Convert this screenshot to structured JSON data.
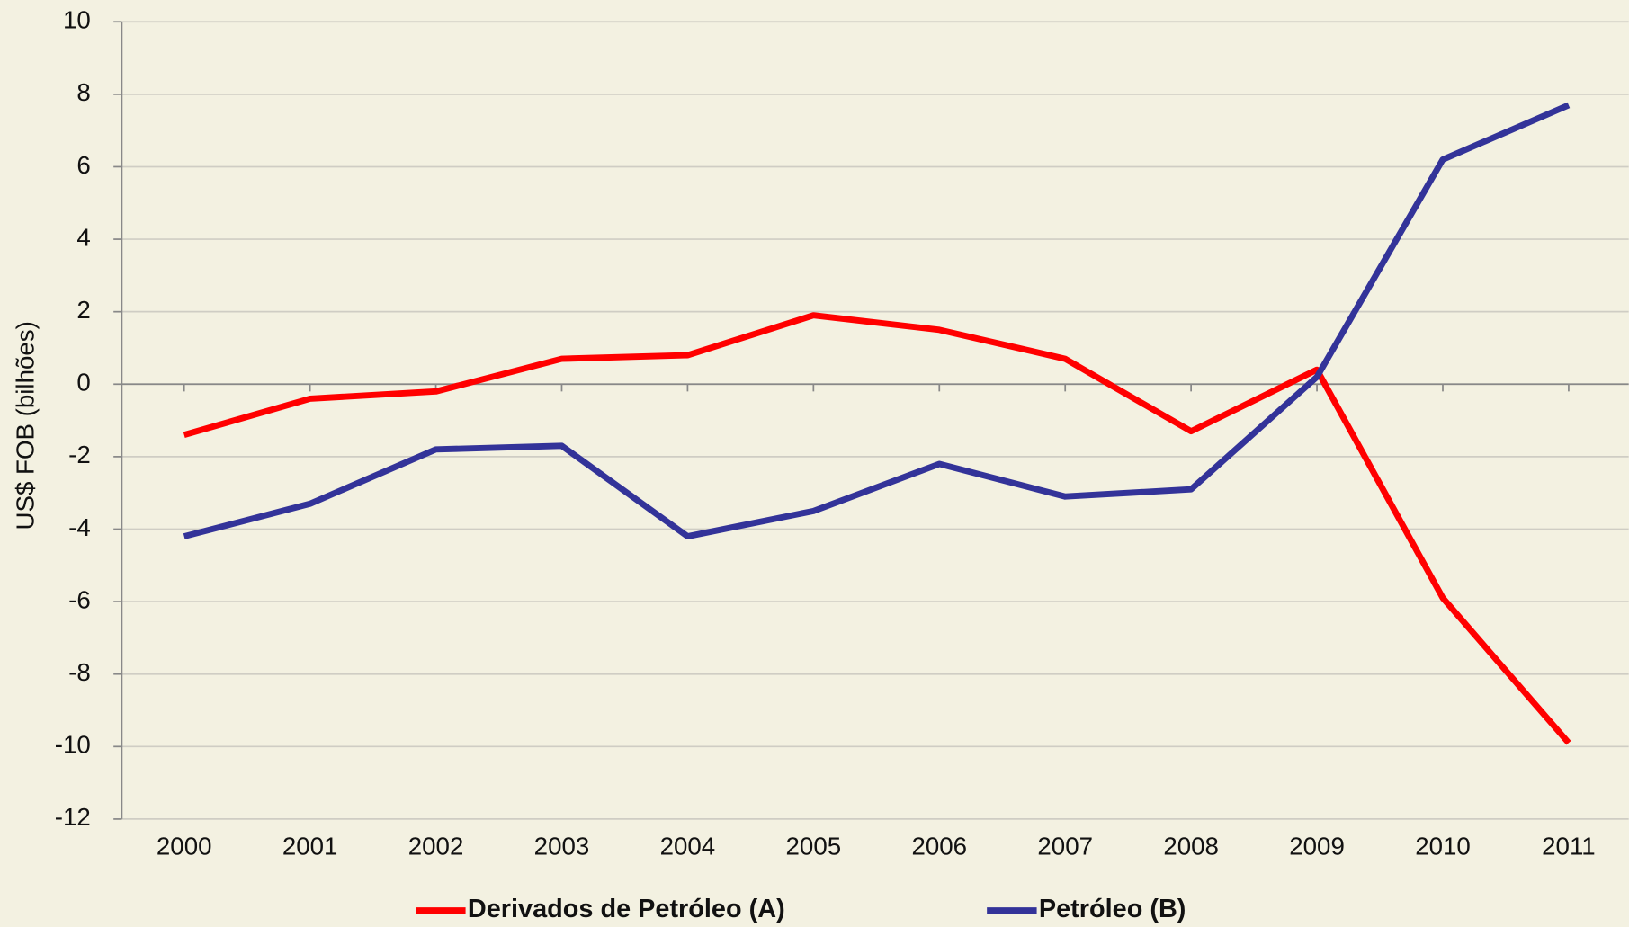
{
  "chart_data": {
    "type": "line",
    "y_label": "US$ FOB (bilhões)",
    "categories": [
      "2000",
      "2001",
      "2002",
      "2003",
      "2004",
      "2005",
      "2006",
      "2007",
      "2008",
      "2009",
      "2010",
      "2011"
    ],
    "series": [
      {
        "name": "Derivados de Petróleo (A)",
        "color": "#ff0000",
        "values": [
          -1.4,
          -0.4,
          -0.2,
          0.7,
          0.8,
          1.9,
          1.5,
          0.7,
          -1.3,
          0.4,
          -5.9,
          -9.9
        ]
      },
      {
        "name": "Petróleo (B)",
        "color": "#333399",
        "values": [
          -4.2,
          -3.3,
          -1.8,
          -1.7,
          -4.2,
          -3.5,
          -2.2,
          -3.1,
          -2.9,
          0.2,
          6.2,
          7.7
        ]
      }
    ],
    "ylim": [
      -12,
      10
    ],
    "yticks": [
      -12,
      -10,
      -8,
      -6,
      -4,
      -2,
      0,
      2,
      4,
      6,
      8,
      10
    ],
    "grid": true
  }
}
